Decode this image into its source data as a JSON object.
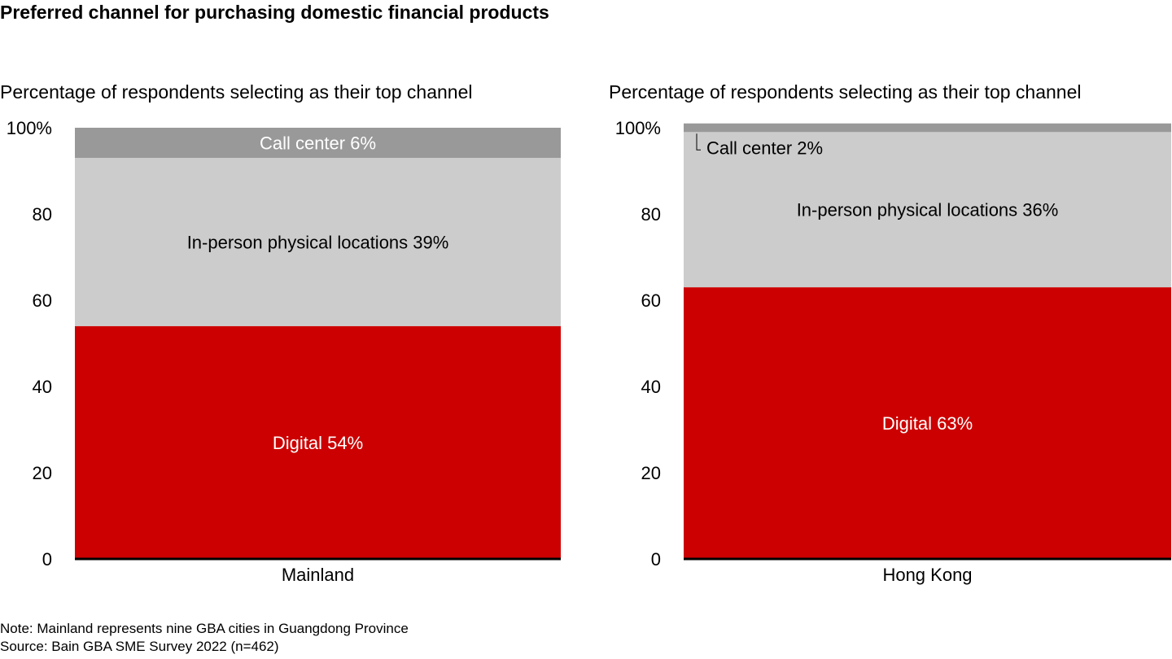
{
  "title": "Preferred channel for purchasing domestic financial products",
  "footer": {
    "note": "Note: Mainland represents nine GBA cities in Guangdong Province",
    "source": "Source: Bain GBA SME Survey 2022 (n=462)"
  },
  "colors": {
    "digital": "#cc0000",
    "in_person": "#cccccc",
    "call_center": "#999999",
    "baseline": "#000000"
  },
  "chart_data": [
    {
      "type": "bar",
      "stacked": true,
      "subtitle": "Percentage of respondents selecting as their top channel",
      "categories": [
        "Mainland"
      ],
      "ylim": [
        0,
        100
      ],
      "yticks": [
        "0",
        "20",
        "40",
        "60",
        "80",
        "100%"
      ],
      "series": [
        {
          "name": "Digital",
          "values": [
            54
          ],
          "label": "Digital 54%",
          "color_key": "digital"
        },
        {
          "name": "In-person physical locations",
          "values": [
            39
          ],
          "label": "In-person physical locations 39%",
          "color_key": "in_person"
        },
        {
          "name": "Call center",
          "values": [
            6
          ],
          "label": "Call center 6%",
          "color_key": "call_center"
        }
      ]
    },
    {
      "type": "bar",
      "stacked": true,
      "subtitle": "Percentage of respondents selecting as their top channel",
      "categories": [
        "Hong Kong"
      ],
      "ylim": [
        0,
        100
      ],
      "yticks": [
        "0",
        "20",
        "40",
        "60",
        "80",
        "100%"
      ],
      "series": [
        {
          "name": "Digital",
          "values": [
            63
          ],
          "label": "Digital 63%",
          "color_key": "digital"
        },
        {
          "name": "In-person physical locations",
          "values": [
            36
          ],
          "label": "In-person physical locations 36%",
          "color_key": "in_person"
        },
        {
          "name": "Call center",
          "values": [
            2
          ],
          "label": "Call center 2%",
          "color_key": "call_center"
        }
      ]
    }
  ]
}
